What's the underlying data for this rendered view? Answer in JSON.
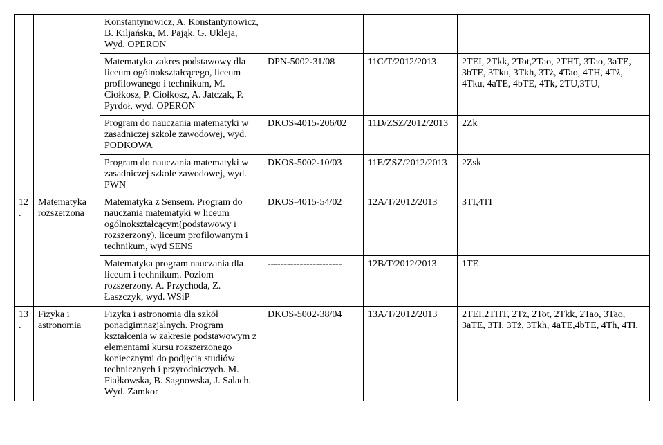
{
  "rows": [
    {
      "c0": "",
      "c1": "",
      "c2": "Konstantynowicz, A. Konstantynowicz, B. Kiljańska, M. Pająk, G. Ukleja, Wyd. OPERON",
      "c3": "",
      "c4": "",
      "c5": ""
    },
    {
      "c0": "",
      "c1": "",
      "c2": "Matematyka zakres podstawowy dla liceum ogólnokształcącego, liceum profilowanego i technikum, M. Ciołkosz, P. Ciołkosz, A. Jatczak, P. Pyrdoł, wyd. OPERON",
      "c3": "DPN-5002-31/08",
      "c4": "11C/T/2012/2013",
      "c5": "2TEI, 2Tkk, 2Tot,2Tao, 2THT, 3Tao, 3aTE, 3bTE, 3Tku, 3Tkh, 3Tż, 4Tao, 4TH, 4Tż, 4Tku, 4aTE, 4bTE, 4Tk, 2TU,3TU,"
    },
    {
      "c0": "",
      "c1": "",
      "c2": "Program do nauczania matematyki w zasadniczej szkole zawodowej, wyd. PODKOWA",
      "c3": "DKOS-4015-206/02",
      "c4": "11D/ZSZ/2012/2013",
      "c5": "2Zk"
    },
    {
      "c0": "",
      "c1": "",
      "c2": "Program do nauczania matematyki w zasadniczej szkole zawodowej, wyd. PWN",
      "c3": "DKOS-5002-10/03",
      "c4": "11E/ZSZ/2012/2013",
      "c5": "2Zsk"
    },
    {
      "c0": "12.",
      "c1": "Matematyka rozszerzona",
      "c2": "Matematyka z Sensem. Program do nauczania matematyki w liceum ogólnokształcącym(podstawowy i rozszerzony), liceum profilowanym i technikum, wyd SENS",
      "c3": "DKOS-4015-54/02",
      "c4": "12A/T/2012/2013",
      "c5": "3TI,4TI"
    },
    {
      "c0": "",
      "c1": "",
      "c2": "Matematyka program nauczania dla liceum i technikum. Poziom rozszerzony. A. Przychoda, Z. Łaszczyk, wyd. WSiP",
      "c3": "-----------------------",
      "c4": "12B/T/2012/2013",
      "c5": "1TE"
    },
    {
      "c0": "13.",
      "c1": "Fizyka i astronomia",
      "c2": "Fizyka i astronomia dla szkół ponadgimnazjalnych. Program kształcenia w zakresie podstawowym z elementami kursu rozszerzonego koniecznymi do podjęcia studiów technicznych i przyrodniczych. M. Fiałkowska, B. Sagnowska, J. Salach. Wyd. Zamkor",
      "c3": "DKOS-5002-38/04",
      "c4": "13A/T/2012/2013",
      "c5": "2TEI,2THT, 2Tż, 2Tot, 2Tkk, 2Tao, 3Tao, 3aTE, 3TI, 3Tż, 3Tkh, 4aTE,4bTE, 4Th, 4TI,"
    }
  ],
  "spans": {
    "group1": {
      "startRow": 0,
      "rows": 4
    },
    "group2": {
      "startRow": 4,
      "rows": 2
    }
  }
}
